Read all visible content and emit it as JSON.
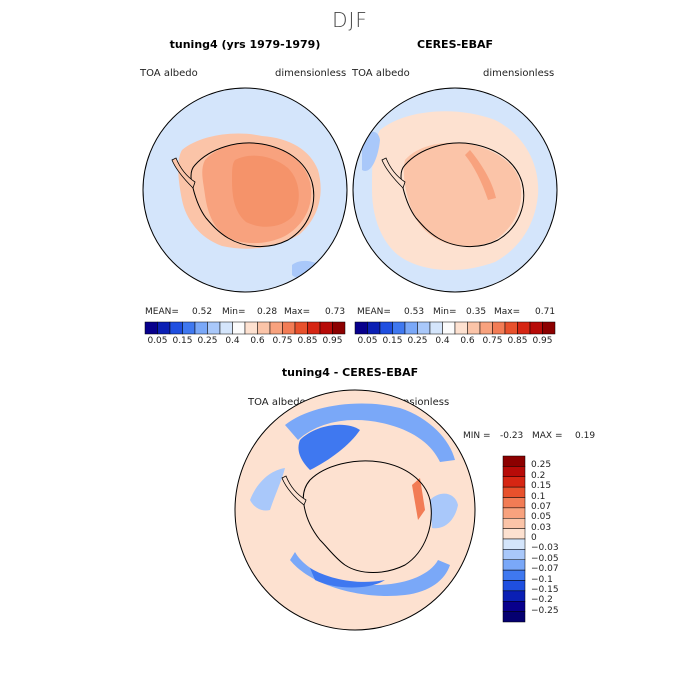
{
  "figure": {
    "title": "DJF"
  },
  "chart_data": [
    {
      "type": "heatmap",
      "projection": "south polar stereographic",
      "title": "tuning4 (yrs 1979-1979)",
      "left_label": "TOA albedo",
      "right_label": "dimensionless",
      "stats": {
        "mean_label": "MEAN=",
        "mean": "0.52",
        "min_label": "Min=",
        "min": "0.28",
        "max_label": "Max=",
        "max": "0.73"
      }
    },
    {
      "type": "heatmap",
      "projection": "south polar stereographic",
      "title": "CERES-EBAF",
      "left_label": "TOA albedo",
      "right_label": "dimensionless",
      "stats": {
        "mean_label": "MEAN=",
        "mean": "0.53",
        "min_label": "Min=",
        "min": "0.35",
        "max_label": "Max=",
        "max": "0.71"
      }
    },
    {
      "type": "heatmap",
      "projection": "south polar stereographic",
      "title": "tuning4 - CERES-EBAF",
      "left_label": "TOA albedo",
      "right_label": "dimensionless",
      "stats": {
        "min_label": "MIN =",
        "min": "-0.23",
        "max_label": "MAX =",
        "max": "0.19"
      }
    }
  ],
  "colorbar_top": {
    "ticks": [
      "0.05",
      "0.15",
      "0.25",
      "0.4",
      "0.6",
      "0.75",
      "0.85",
      "0.95"
    ],
    "colors": [
      "#08008c",
      "#0a1fb4",
      "#1f4fe0",
      "#3f78f0",
      "#7aa8f8",
      "#a9c8fa",
      "#d4e5fb",
      "#fbfbfb",
      "#fde1d0",
      "#fbc4a8",
      "#f8a27e",
      "#f27c55",
      "#e8512c",
      "#d62613",
      "#b70b08",
      "#8c0000"
    ]
  },
  "colorbar_diff": {
    "labels": [
      "0.25",
      "0.2",
      "0.15",
      "0.1",
      "0.07",
      "0.05",
      "0.03",
      "0",
      "−0.03",
      "−0.05",
      "−0.07",
      "−0.1",
      "−0.15",
      "−0.2",
      "−0.25"
    ],
    "colors": [
      "#8c0000",
      "#b70b08",
      "#d62613",
      "#e8512c",
      "#f27c55",
      "#f8a27e",
      "#fbc4a8",
      "#fde1d0",
      "#d4e5fb",
      "#a9c8fa",
      "#7aa8f8",
      "#3f78f0",
      "#1f4fe0",
      "#0a1fb4",
      "#08008c",
      "#050070"
    ]
  },
  "colors": {
    "ocean": "#d4e5fb",
    "ice_model": "#f8a27e",
    "ice_edge_model": "#fbc4a8",
    "ice_obs": "#fbc4a8",
    "sea_ice_obs": "#fde1d0",
    "diff_bg": "#fde1d0"
  }
}
